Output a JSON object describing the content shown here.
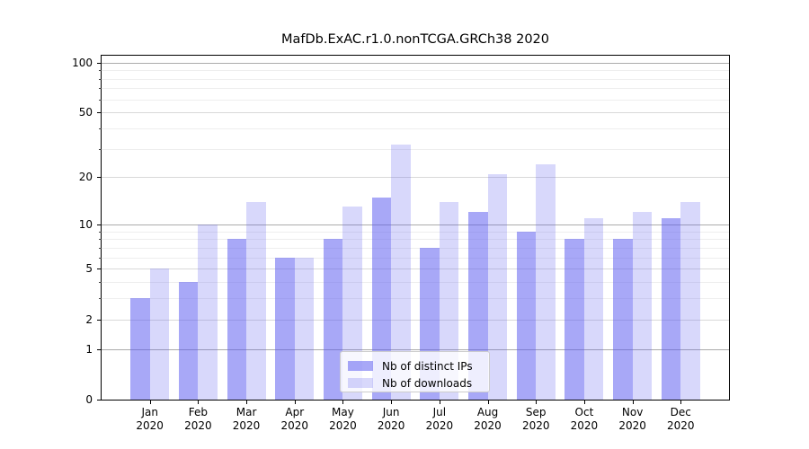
{
  "title": "MafDb.ExAC.r1.0.nonTCGA.GRCh38 2020",
  "chart_data": {
    "type": "bar",
    "title": "MafDb.ExAC.r1.0.nonTCGA.GRCh38 2020",
    "categories": [
      {
        "month": "Jan",
        "year": "2020"
      },
      {
        "month": "Feb",
        "year": "2020"
      },
      {
        "month": "Mar",
        "year": "2020"
      },
      {
        "month": "Apr",
        "year": "2020"
      },
      {
        "month": "May",
        "year": "2020"
      },
      {
        "month": "Jun",
        "year": "2020"
      },
      {
        "month": "Jul",
        "year": "2020"
      },
      {
        "month": "Aug",
        "year": "2020"
      },
      {
        "month": "Sep",
        "year": "2020"
      },
      {
        "month": "Oct",
        "year": "2020"
      },
      {
        "month": "Nov",
        "year": "2020"
      },
      {
        "month": "Dec",
        "year": "2020"
      }
    ],
    "series": [
      {
        "name": "Nb of distinct IPs",
        "values": [
          3,
          4,
          8,
          6,
          8,
          15,
          7,
          12,
          9,
          8,
          8,
          11
        ],
        "color": "rgba(90,90,240,0.53)"
      },
      {
        "name": "Nb of downloads",
        "values": [
          5,
          10,
          14,
          6,
          13,
          32,
          14,
          21,
          24,
          11,
          12,
          14
        ],
        "color": "rgba(90,90,240,0.24)"
      }
    ],
    "xlabel": "",
    "ylabel": "",
    "yscale": "log1p",
    "ylim": [
      0,
      110
    ],
    "yticks": [
      0,
      1,
      2,
      5,
      10,
      20,
      50,
      100
    ],
    "decade_ticks": [
      1,
      10,
      100
    ],
    "minor_yticks": [
      3,
      4,
      6,
      7,
      8,
      9,
      30,
      40,
      60,
      70,
      80,
      90
    ],
    "grid": true,
    "legend_position": "lower center"
  }
}
